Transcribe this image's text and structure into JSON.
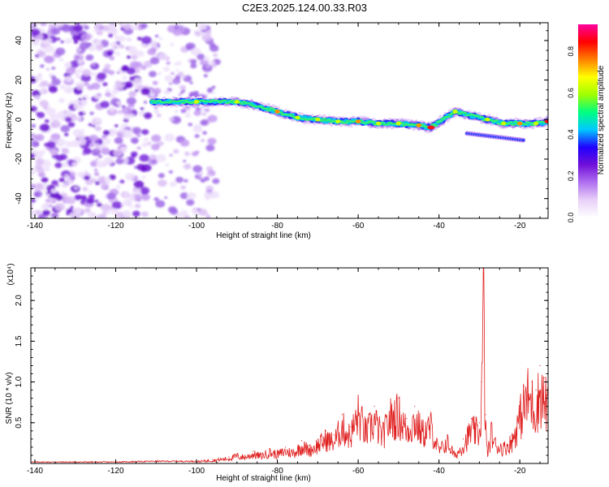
{
  "title": "C2E3.2025.124.00.33.R03",
  "chart_data": [
    {
      "type": "heatmap",
      "xlabel": "Height of straight line (km)",
      "ylabel": "Frequency (Hz)",
      "xlim": [
        -141,
        -13
      ],
      "ylim": [
        -50,
        49
      ],
      "x_ticks": [
        -140,
        -120,
        -100,
        -80,
        -60,
        -40,
        -20
      ],
      "y_ticks": [
        -40,
        -20,
        0,
        20,
        40
      ],
      "colorbar": {
        "label": "Normalized spectral amplitude",
        "range": [
          0,
          0.93
        ],
        "ticks": [
          0.0,
          0.2,
          0.4,
          0.6,
          0.8
        ],
        "tick_labels": [
          "0.0",
          "0.2",
          "0.4",
          "0.6",
          "0.8"
        ],
        "colors": [
          "#ffffff",
          "#e8d0f8",
          "#b070f0",
          "#7010d8",
          "#2000ff",
          "#00c8ff",
          "#00ff80",
          "#a0ff00",
          "#ffff00",
          "#ff8000",
          "#ff0000",
          "#ff00a0"
        ]
      },
      "scatter_region": {
        "x": [
          -141,
          -95
        ],
        "y": [
          -50,
          49
        ],
        "amplitude": [
          0.05,
          0.2
        ]
      },
      "ridge": {
        "x": [
          -111,
          -105,
          -100,
          -95,
          -90,
          -85,
          -80,
          -75,
          -70,
          -65,
          -60,
          -55,
          -50,
          -45,
          -42,
          -36,
          -32,
          -28,
          -24,
          -20,
          -16,
          -13
        ],
        "y": [
          9,
          9,
          9,
          9,
          9,
          7,
          4,
          1,
          0,
          -1,
          -1,
          -2,
          -2,
          -3,
          -4,
          4,
          2,
          0,
          -2,
          -2,
          -2,
          -1
        ],
        "amplitude": [
          0.45,
          0.55,
          0.6,
          0.55,
          0.6,
          0.55,
          0.7,
          0.65,
          0.6,
          0.65,
          0.7,
          0.6,
          0.65,
          0.7,
          0.9,
          0.6,
          0.55,
          0.6,
          0.65,
          0.7,
          0.6,
          0.85
        ]
      }
    },
    {
      "type": "line",
      "xlabel": "Height of straight line (km)",
      "ylabel": "SNR (10 * v/v)",
      "y_multiplier": "(x10⁴)",
      "xlim": [
        -141,
        -13
      ],
      "ylim": [
        0,
        2.4
      ],
      "x_ticks": [
        -140,
        -120,
        -100,
        -80,
        -60,
        -40,
        -20
      ],
      "y_ticks": [
        0.5,
        1.0,
        1.5,
        2.0
      ],
      "y_tick_labels": [
        "0.5",
        "1.0",
        "1.5",
        "2.0"
      ],
      "color": "#e02020",
      "series": [
        {
          "x": [
            -141,
            -130,
            -120,
            -110,
            -100,
            -96,
            -92,
            -90,
            -88,
            -86,
            -84,
            -82,
            -80,
            -78,
            -76,
            -74,
            -72,
            -70,
            -68,
            -66,
            -64,
            -62,
            -60,
            -58,
            -56,
            -54,
            -52,
            -50,
            -48,
            -46,
            -44,
            -42,
            -40,
            -38,
            -36,
            -34,
            -32,
            -30,
            -29.5,
            -29,
            -28.5,
            -28,
            -27,
            -26,
            -24,
            -22,
            -20,
            -19,
            -18,
            -17,
            -16,
            -15,
            -14,
            -13
          ],
          "y": [
            0.02,
            0.02,
            0.02,
            0.03,
            0.03,
            0.05,
            0.08,
            0.12,
            0.1,
            0.15,
            0.12,
            0.18,
            0.15,
            0.2,
            0.17,
            0.28,
            0.22,
            0.3,
            0.4,
            0.35,
            0.6,
            0.45,
            0.8,
            0.5,
            0.7,
            0.45,
            0.75,
            0.8,
            0.55,
            0.7,
            0.5,
            0.6,
            0.2,
            0.35,
            0.12,
            0.3,
            0.55,
            0.5,
            1.0,
            2.4,
            0.6,
            0.15,
            0.5,
            0.3,
            0.25,
            0.35,
            0.75,
            0.95,
            1.1,
            1.0,
            0.9,
            1.2,
            1.05,
            0.95
          ]
        }
      ]
    }
  ]
}
